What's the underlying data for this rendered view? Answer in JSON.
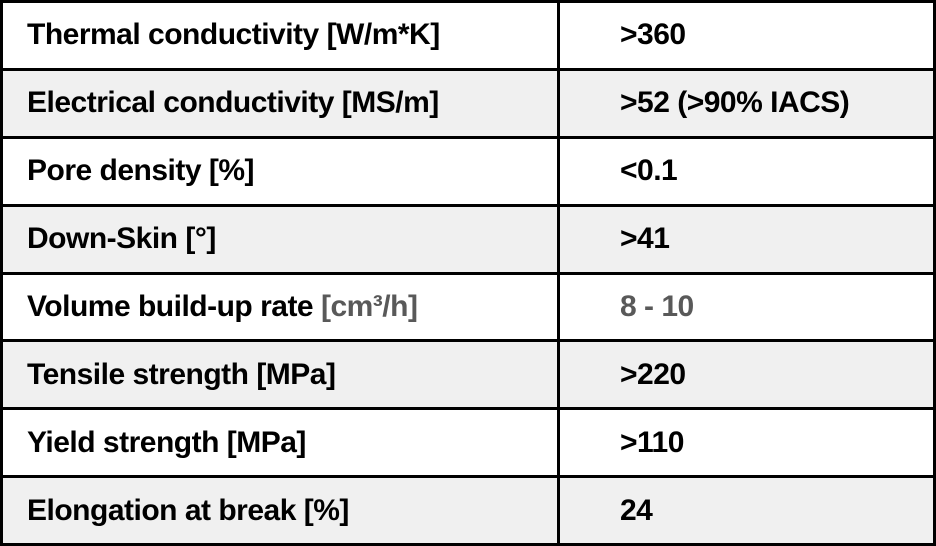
{
  "colors": {
    "border": "#000000",
    "row_alt_background": "#f0f0f0",
    "text": "#000000",
    "muted_text": "#595959"
  },
  "table": {
    "rows": [
      {
        "label": "Thermal conductivity [W/m*K]",
        "value": ">360"
      },
      {
        "label": "Electrical conductivity [MS/m]",
        "value": ">52 (>90% IACS)"
      },
      {
        "label": "Pore density [%]",
        "value": "<0.1"
      },
      {
        "label": "Down-Skin [°]",
        "value": ">41"
      },
      {
        "label": "Volume build-up rate ",
        "unit": "[cm³/h]",
        "value": "8 - 10",
        "muted": true
      },
      {
        "label": "Tensile strength [MPa]",
        "value": ">220"
      },
      {
        "label": "Yield strength [MPa]",
        "value": ">110"
      },
      {
        "label": "Elongation at break [%]",
        "value": "24"
      }
    ]
  }
}
